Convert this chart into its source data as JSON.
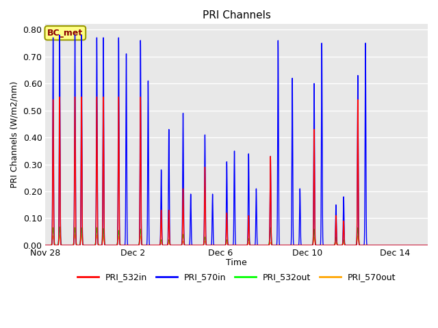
{
  "title": "PRI Channels",
  "ylabel": "PRI Channels (W/m2/nm)",
  "xlabel": "Time",
  "annotation": "BC_met",
  "ylim": [
    0.0,
    0.82
  ],
  "background_color": "#e8e8e8",
  "legend_entries": [
    "PRI_532in",
    "PRI_570in",
    "PRI_532out",
    "PRI_570out"
  ],
  "line_colors": [
    "red",
    "blue",
    "lime",
    "orange"
  ],
  "xtick_labels": [
    "Nov 28",
    "Dec 2",
    "Dec 6",
    "Dec 10",
    "Dec 14"
  ],
  "xtick_positions": [
    0,
    4,
    8,
    12,
    16
  ],
  "total_days": 17.5,
  "days": [
    {
      "day": 0,
      "peaks": [
        {
          "t": 0.35,
          "r": 0.54,
          "b": 0.77,
          "g": 0.065,
          "o": 0.035
        },
        {
          "t": 0.65,
          "r": 0.55,
          "b": 0.78,
          "g": 0.068,
          "o": 0.038
        }
      ]
    },
    {
      "day": 1,
      "peaks": [
        {
          "t": 0.35,
          "r": 0.55,
          "b": 0.78,
          "g": 0.065,
          "o": 0.04
        },
        {
          "t": 0.65,
          "r": 0.55,
          "b": 0.78,
          "g": 0.065,
          "o": 0.04
        }
      ]
    },
    {
      "day": 2,
      "peaks": [
        {
          "t": 0.35,
          "r": 0.55,
          "b": 0.77,
          "g": 0.065,
          "o": 0.038
        },
        {
          "t": 0.65,
          "r": 0.55,
          "b": 0.77,
          "g": 0.062,
          "o": 0.036
        }
      ]
    },
    {
      "day": 3,
      "peaks": [
        {
          "t": 0.35,
          "r": 0.55,
          "b": 0.77,
          "g": 0.055,
          "o": 0.033
        },
        {
          "t": 0.7,
          "r": 0.0,
          "b": 0.71,
          "g": 0.0,
          "o": 0.0
        }
      ]
    },
    {
      "day": 4,
      "peaks": [
        {
          "t": 0.35,
          "r": 0.55,
          "b": 0.76,
          "g": 0.06,
          "o": 0.035
        },
        {
          "t": 0.7,
          "r": 0.0,
          "b": 0.61,
          "g": 0.0,
          "o": 0.0
        }
      ]
    },
    {
      "day": 5,
      "peaks": [
        {
          "t": 0.3,
          "r": 0.13,
          "b": 0.28,
          "g": 0.02,
          "o": 0.01
        },
        {
          "t": 0.65,
          "r": 0.13,
          "b": 0.43,
          "g": 0.02,
          "o": 0.01
        }
      ]
    },
    {
      "day": 6,
      "peaks": [
        {
          "t": 0.3,
          "r": 0.21,
          "b": 0.49,
          "g": 0.04,
          "o": 0.015
        },
        {
          "t": 0.65,
          "r": 0.0,
          "b": 0.19,
          "g": 0.0,
          "o": 0.0
        }
      ]
    },
    {
      "day": 7,
      "peaks": [
        {
          "t": 0.3,
          "r": 0.29,
          "b": 0.41,
          "g": 0.03,
          "o": 0.015
        },
        {
          "t": 0.65,
          "r": 0.0,
          "b": 0.19,
          "g": 0.0,
          "o": 0.0
        }
      ]
    },
    {
      "day": 8,
      "peaks": [
        {
          "t": 0.3,
          "r": 0.12,
          "b": 0.31,
          "g": 0.02,
          "o": 0.01
        },
        {
          "t": 0.65,
          "r": 0.0,
          "b": 0.35,
          "g": 0.0,
          "o": 0.0
        }
      ]
    },
    {
      "day": 9,
      "peaks": [
        {
          "t": 0.3,
          "r": 0.11,
          "b": 0.34,
          "g": 0.025,
          "o": 0.01
        },
        {
          "t": 0.65,
          "r": 0.0,
          "b": 0.21,
          "g": 0.0,
          "o": 0.0
        }
      ]
    },
    {
      "day": 10,
      "peaks": [
        {
          "t": 0.3,
          "r": 0.33,
          "b": 0.33,
          "g": 0.065,
          "o": 0.01
        },
        {
          "t": 0.65,
          "r": 0.0,
          "b": 0.76,
          "g": 0.0,
          "o": 0.0
        }
      ]
    },
    {
      "day": 11,
      "peaks": [
        {
          "t": 0.3,
          "r": 0.0,
          "b": 0.62,
          "g": 0.0,
          "o": 0.0
        },
        {
          "t": 0.65,
          "r": 0.0,
          "b": 0.21,
          "g": 0.0,
          "o": 0.0
        }
      ]
    },
    {
      "day": 12,
      "peaks": [
        {
          "t": 0.3,
          "r": 0.43,
          "b": 0.6,
          "g": 0.06,
          "o": 0.03
        },
        {
          "t": 0.65,
          "r": 0.0,
          "b": 0.75,
          "g": 0.0,
          "o": 0.0
        }
      ]
    },
    {
      "day": 13,
      "peaks": [
        {
          "t": 0.3,
          "r": 0.11,
          "b": 0.15,
          "g": 0.03,
          "o": 0.01
        },
        {
          "t": 0.65,
          "r": 0.09,
          "b": 0.18,
          "g": 0.02,
          "o": 0.01
        }
      ]
    },
    {
      "day": 14,
      "peaks": [
        {
          "t": 0.3,
          "r": 0.54,
          "b": 0.63,
          "g": 0.065,
          "o": 0.035
        },
        {
          "t": 0.65,
          "r": 0.0,
          "b": 0.75,
          "g": 0.0,
          "o": 0.0
        }
      ]
    },
    {
      "day": 15,
      "peaks": [
        {
          "t": 0.5,
          "r": 0.0,
          "b": 0.0,
          "g": 0.0,
          "o": 0.0
        }
      ]
    },
    {
      "day": 16,
      "peaks": [
        {
          "t": 0.5,
          "r": 0.0,
          "b": 0.0,
          "g": 0.0,
          "o": 0.0
        }
      ]
    }
  ]
}
